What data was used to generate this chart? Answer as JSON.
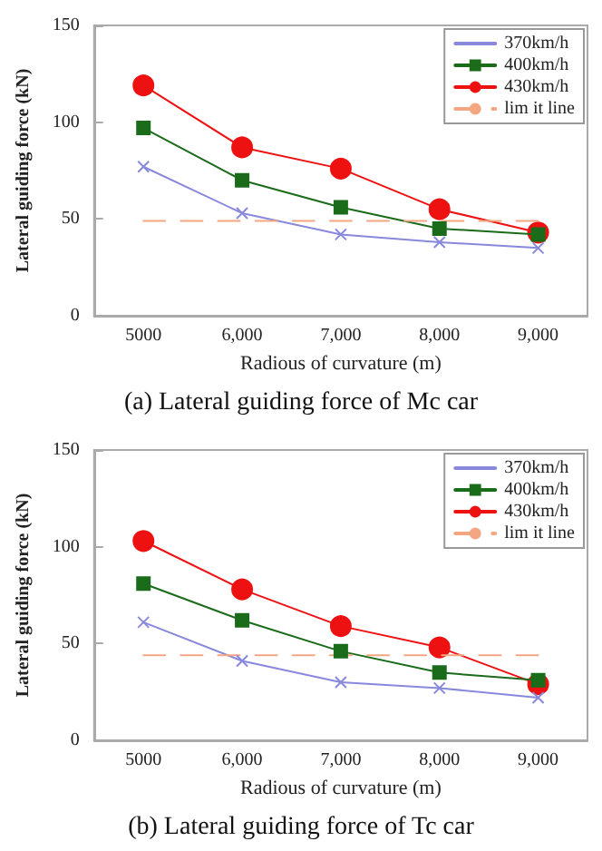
{
  "chart_data": [
    {
      "type": "line",
      "title": "(a) Lateral guiding force of Mc car",
      "xlabel": "Radious of curvature (m)",
      "ylabel": "Lateral guiding force (kN)",
      "categories": [
        "5000",
        "6,000",
        "7,000",
        "8,000",
        "9,000"
      ],
      "ylim": [
        0,
        150
      ],
      "yticks": [
        0,
        50,
        100,
        150
      ],
      "grid": false,
      "legend": "top right",
      "series": [
        {
          "name": "370km/h",
          "color": "#8888dd",
          "marker": "cross",
          "values": [
            77,
            53,
            42,
            38,
            35
          ]
        },
        {
          "name": "400km/h",
          "color": "#1a6b1a",
          "marker": "square",
          "values": [
            97,
            70,
            56,
            45,
            42
          ]
        },
        {
          "name": "430km/h",
          "color": "#ee1111",
          "marker": "circle",
          "values": [
            119,
            87,
            76,
            55,
            43
          ]
        },
        {
          "name": "lim it line",
          "color": "#f4a582",
          "marker": "none",
          "line_style": "dashed",
          "values": [
            49,
            49,
            49,
            49,
            49
          ]
        }
      ]
    },
    {
      "type": "line",
      "title": "(b) Lateral guiding force of Tc car",
      "xlabel": "Radious of curvature (m)",
      "ylabel": "Lateral guiding force (kN)",
      "categories": [
        "5000",
        "6,000",
        "7,000",
        "8,000",
        "9,000"
      ],
      "ylim": [
        0,
        150
      ],
      "yticks": [
        0,
        50,
        100,
        150
      ],
      "grid": false,
      "legend": "top right",
      "series": [
        {
          "name": "370km/h",
          "color": "#8888dd",
          "marker": "cross",
          "values": [
            61,
            41,
            30,
            27,
            22
          ]
        },
        {
          "name": "400km/h",
          "color": "#1a6b1a",
          "marker": "square",
          "values": [
            81,
            62,
            46,
            35,
            31
          ]
        },
        {
          "name": "430km/h",
          "color": "#ee1111",
          "marker": "circle",
          "values": [
            103,
            78,
            59,
            48,
            29
          ]
        },
        {
          "name": "lim it line",
          "color": "#f4a582",
          "marker": "none",
          "line_style": "dashed",
          "values": [
            44,
            44,
            44,
            44,
            44
          ]
        }
      ]
    }
  ]
}
